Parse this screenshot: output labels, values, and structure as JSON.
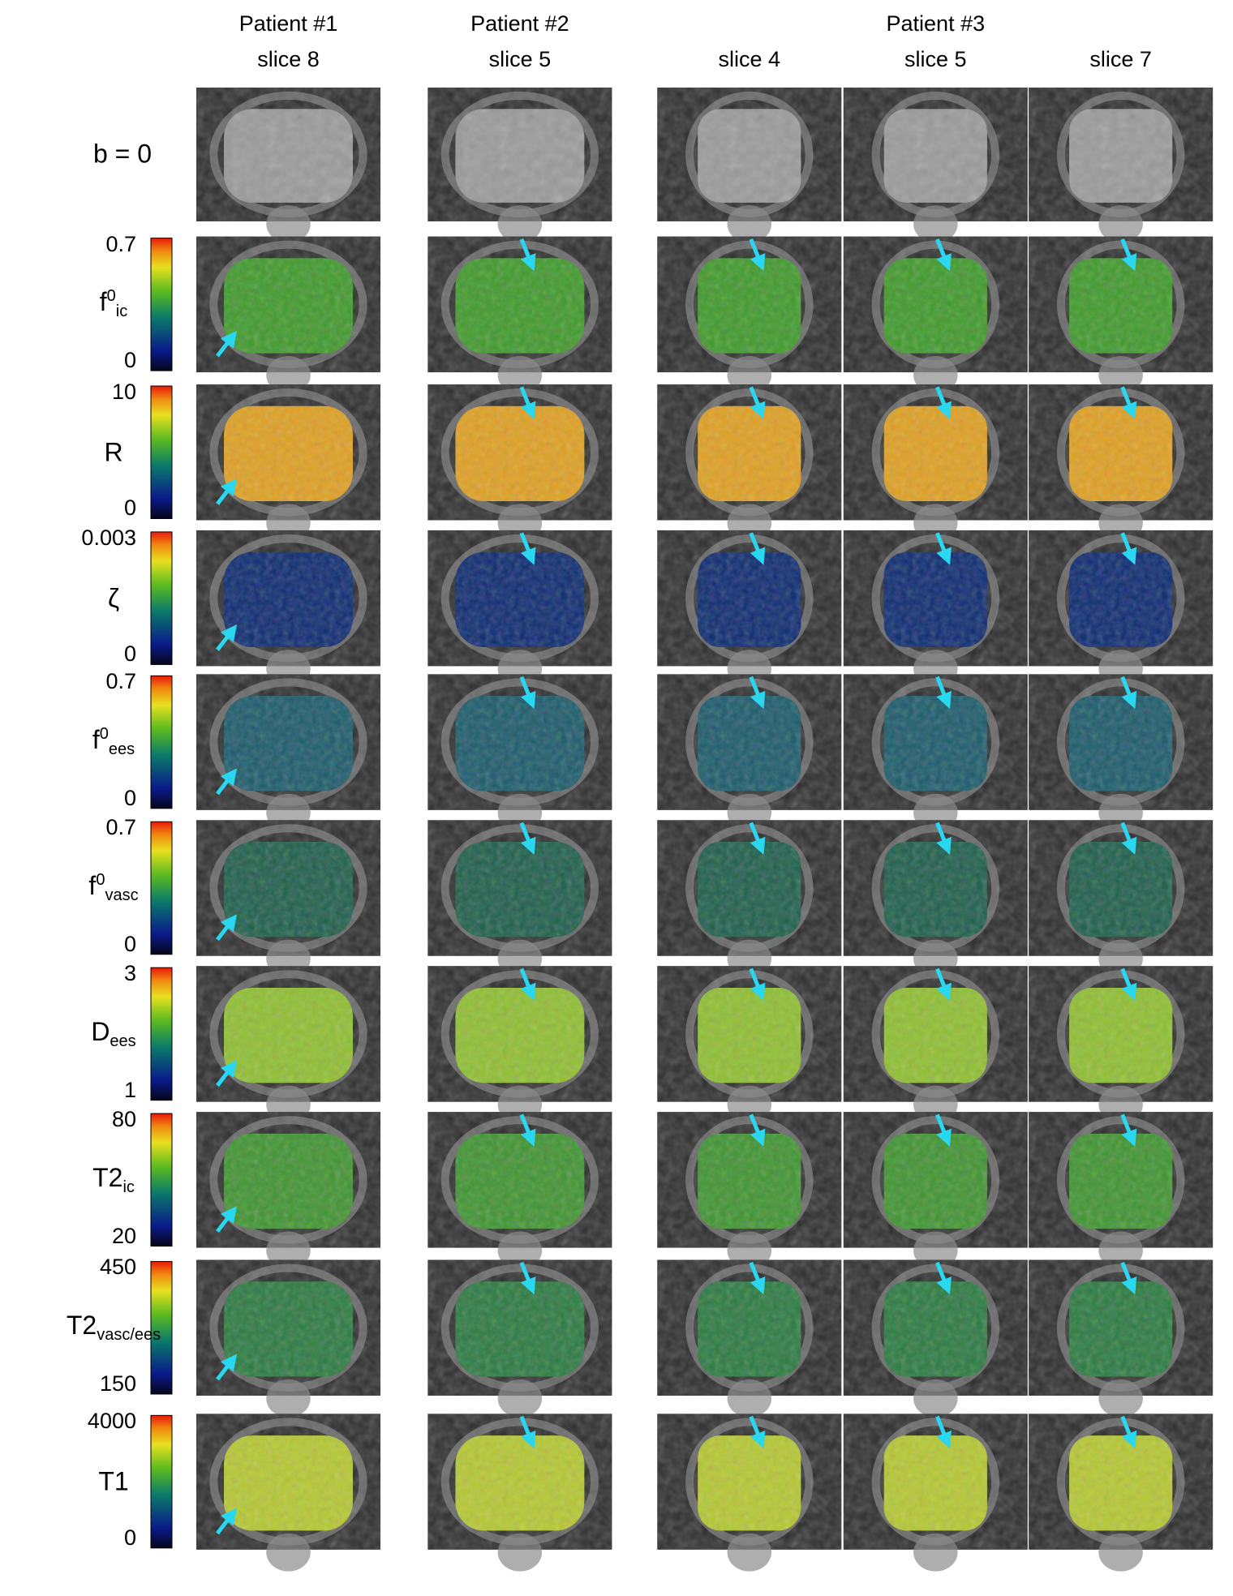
{
  "header": {
    "columns": [
      {
        "patient": "Patient #1",
        "slice": "slice 8"
      },
      {
        "patient": "Patient #2",
        "slice": "slice 5"
      },
      {
        "slice": "slice 4"
      },
      {
        "slice": "slice 5"
      },
      {
        "slice": "slice 7"
      }
    ],
    "group": "Patient #3"
  },
  "rows": [
    {
      "label": {
        "base": "b = 0"
      },
      "color": "#9a9a9a"
    },
    {
      "label": {
        "base": "f",
        "sup": "0",
        "sub": "ic"
      },
      "max": 0.7,
      "min": 0,
      "color": "#3f9a2a"
    },
    {
      "label": {
        "base": "R"
      },
      "max": 10,
      "min": 0,
      "color": "#e0a020"
    },
    {
      "label": {
        "base": "ζ"
      },
      "max": 0.003,
      "min": 0,
      "color": "#0c2a70"
    },
    {
      "label": {
        "base": "f",
        "sup": "0",
        "sub": "ees"
      },
      "max": 0.7,
      "min": 0,
      "color": "#1a5a6a"
    },
    {
      "label": {
        "base": "f",
        "sup": "0",
        "sub": "vasc"
      },
      "max": 0.7,
      "min": 0,
      "color": "#1d5e4a"
    },
    {
      "label": {
        "base": "D",
        "sub": "ees"
      },
      "max": 3,
      "min": 1,
      "color": "#8fbf30"
    },
    {
      "label": {
        "base": "T2",
        "sub": "ic"
      },
      "max": 80,
      "min": 20,
      "color": "#3f9430"
    },
    {
      "label": {
        "base": "T2",
        "sub": "vasc/ees"
      },
      "max": 450,
      "min": 150,
      "color": "#2a7a40"
    },
    {
      "label": {
        "base": "T1"
      },
      "max": 4000,
      "min": 0,
      "color": "#b5c830"
    }
  ]
}
